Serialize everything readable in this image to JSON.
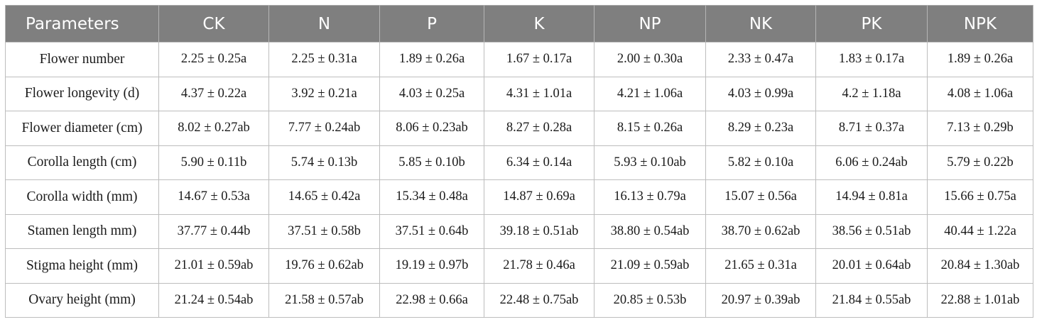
{
  "table": {
    "headers": [
      "Parameters",
      "CK",
      "N",
      "P",
      "K",
      "NP",
      "NK",
      "PK",
      "NPK"
    ],
    "rows": [
      {
        "label": "Flower number",
        "values": [
          "2.25 ± 0.25a",
          "2.25 ± 0.31a",
          "1.89 ± 0.26a",
          "1.67 ± 0.17a",
          "2.00 ± 0.30a",
          "2.33 ± 0.47a",
          "1.83 ± 0.17a",
          "1.89 ± 0.26a"
        ]
      },
      {
        "label": "Flower longevity (d)",
        "values": [
          "4.37 ± 0.22a",
          "3.92 ± 0.21a",
          "4.03 ± 0.25a",
          "4.31 ± 1.01a",
          "4.21 ± 1.06a",
          "4.03 ± 0.99a",
          "4.2 ± 1.18a",
          "4.08 ± 1.06a"
        ]
      },
      {
        "label": "Flower diameter (cm)",
        "values": [
          "8.02 ± 0.27ab",
          "7.77 ± 0.24ab",
          "8.06 ± 0.23ab",
          "8.27 ± 0.28a",
          "8.15 ± 0.26a",
          "8.29 ± 0.23a",
          "8.71 ± 0.37a",
          "7.13 ± 0.29b"
        ]
      },
      {
        "label": "Corolla length (cm)",
        "values": [
          "5.90 ± 0.11b",
          "5.74 ± 0.13b",
          "5.85 ± 0.10b",
          "6.34 ± 0.14a",
          "5.93 ± 0.10ab",
          "5.82 ± 0.10a",
          "6.06 ± 0.24ab",
          "5.79 ± 0.22b"
        ]
      },
      {
        "label": "Corolla width (mm)",
        "values": [
          "14.67 ± 0.53a",
          "14.65 ± 0.42a",
          "15.34 ± 0.48a",
          "14.87 ± 0.69a",
          "16.13 ± 0.79a",
          "15.07 ± 0.56a",
          "14.94 ± 0.81a",
          "15.66 ± 0.75a"
        ]
      },
      {
        "label": "Stamen length mm)",
        "values": [
          "37.77 ± 0.44b",
          "37.51 ± 0.58b",
          "37.51 ± 0.64b",
          "39.18 ± 0.51ab",
          "38.80 ± 0.54ab",
          "38.70 ± 0.62ab",
          "38.56 ± 0.51ab",
          "40.44 ± 1.22a"
        ]
      },
      {
        "label": "Stigma height (mm)",
        "values": [
          "21.01 ± 0.59ab",
          "19.76 ± 0.62ab",
          "19.19 ± 0.97b",
          "21.78 ± 0.46a",
          "21.09 ± 0.59ab",
          "21.65 ± 0.31a",
          "20.01 ± 0.64ab",
          "20.84 ± 1.30ab"
        ]
      },
      {
        "label": "Ovary height (mm)",
        "values": [
          "21.24 ± 0.54ab",
          "21.58 ± 0.57ab",
          "22.98 ± 0.66a",
          "22.48 ± 0.75ab",
          "20.85 ± 0.53b",
          "20.97 ± 0.39ab",
          "21.84 ± 0.55ab",
          "22.88 ± 1.01ab"
        ]
      }
    ]
  },
  "colors": {
    "header_background": "#7f7f7f",
    "header_text": "#ffffff",
    "border": "#bdbdbd"
  }
}
